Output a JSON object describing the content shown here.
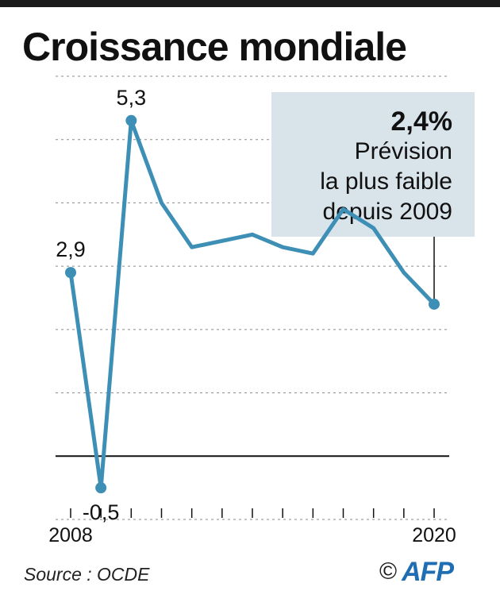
{
  "title": "Croissance mondiale",
  "chart_data": {
    "type": "line",
    "x": [
      2008,
      2009,
      2010,
      2011,
      2012,
      2013,
      2014,
      2015,
      2016,
      2017,
      2018,
      2019,
      2020
    ],
    "values": [
      2.9,
      -0.5,
      5.3,
      4.0,
      3.3,
      3.4,
      3.5,
      3.3,
      3.2,
      3.9,
      3.6,
      2.9,
      2.4
    ],
    "xlabel": "",
    "ylabel": "",
    "x_tick_labels": {
      "first": "2008",
      "last": "2020"
    },
    "ylim": [
      -1.0,
      6.0
    ],
    "grid": "dashed horizontal",
    "data_labels": [
      {
        "index": 0,
        "text": "2,9"
      },
      {
        "index": 1,
        "text": "-0,5"
      },
      {
        "index": 2,
        "text": "5,3"
      }
    ],
    "annotation": {
      "index": 12,
      "value_text": "2,4%",
      "lines": [
        "Prévision",
        "la plus faible",
        "depuis 2009"
      ]
    }
  },
  "footer": {
    "source": "Source : OCDE",
    "copyright": "©",
    "logo_text": "AFP"
  },
  "colors": {
    "line": "#3e8fb6",
    "annotation_bg": "#d9e3ea",
    "grid": "#8a8a8a",
    "text": "#111111",
    "logo": "#1f6eb4"
  }
}
